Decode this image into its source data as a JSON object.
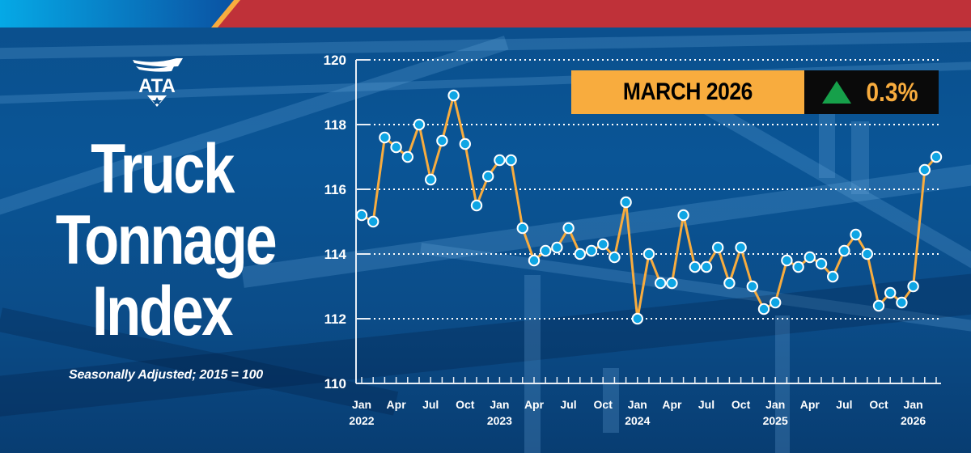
{
  "header": {
    "left_gradient": [
      "#05a9e6",
      "#0b4fa0"
    ],
    "stripe_color": "#f8ac3e",
    "right_color": "#bf3139"
  },
  "logo": {
    "text": "ATA"
  },
  "title": {
    "line1": "Truck",
    "line2": "Tonnage",
    "line3": "Index"
  },
  "subtitle": "Seasonally Adjusted; 2015 = 100",
  "badge": {
    "month_label": "MARCH 2026",
    "direction": "up",
    "change_label": "0.3%",
    "month_bg": "#f8ac3e",
    "change_bg": "#0a0a0a",
    "arrow_color": "#16a04a"
  },
  "colors": {
    "line": "#f8ac3e",
    "marker_fill": "#0ea5e4",
    "marker_stroke": "#ffffff",
    "axis": "#e8eef5",
    "grid": "#ffffff"
  },
  "chart_data": {
    "type": "line",
    "title": "Truck Tonnage Index",
    "subtitle": "Seasonally Adjusted; 2015 = 100",
    "xlabel": "",
    "ylabel": "",
    "ylim": [
      110,
      120
    ],
    "yticks": [
      110,
      112,
      114,
      116,
      118,
      120
    ],
    "grid": "horizontal dotted",
    "x_tick_labels": [
      {
        "index": 0,
        "month": "Jan",
        "year": "2022"
      },
      {
        "index": 3,
        "month": "Apr",
        "year": ""
      },
      {
        "index": 6,
        "month": "Jul",
        "year": ""
      },
      {
        "index": 9,
        "month": "Oct",
        "year": ""
      },
      {
        "index": 12,
        "month": "Jan",
        "year": "2023"
      },
      {
        "index": 15,
        "month": "Apr",
        "year": ""
      },
      {
        "index": 18,
        "month": "Jul",
        "year": ""
      },
      {
        "index": 21,
        "month": "Oct",
        "year": ""
      },
      {
        "index": 24,
        "month": "Jan",
        "year": "2024"
      },
      {
        "index": 27,
        "month": "Apr",
        "year": ""
      },
      {
        "index": 30,
        "month": "Jul",
        "year": ""
      },
      {
        "index": 33,
        "month": "Oct",
        "year": ""
      },
      {
        "index": 36,
        "month": "Jan",
        "year": "2025"
      },
      {
        "index": 39,
        "month": "Apr",
        "year": ""
      },
      {
        "index": 42,
        "month": "Jul",
        "year": ""
      },
      {
        "index": 45,
        "month": "Oct",
        "year": ""
      },
      {
        "index": 48,
        "month": "Jan",
        "year": "2026"
      }
    ],
    "x": [
      "2022-01",
      "2022-02",
      "2022-03",
      "2022-04",
      "2022-05",
      "2022-06",
      "2022-07",
      "2022-08",
      "2022-09",
      "2022-10",
      "2022-11",
      "2022-12",
      "2023-01",
      "2023-02",
      "2023-03",
      "2023-04",
      "2023-05",
      "2023-06",
      "2023-07",
      "2023-08",
      "2023-09",
      "2023-10",
      "2023-11",
      "2023-12",
      "2024-01",
      "2024-02",
      "2024-03",
      "2024-04",
      "2024-05",
      "2024-06",
      "2024-07",
      "2024-08",
      "2024-09",
      "2024-10",
      "2024-11",
      "2024-12",
      "2025-01",
      "2025-02",
      "2025-03",
      "2025-04",
      "2025-05",
      "2025-06",
      "2025-07",
      "2025-08",
      "2025-09",
      "2025-10",
      "2025-11",
      "2025-12",
      "2026-01",
      "2026-02",
      "2026-03"
    ],
    "series": [
      {
        "name": "Truck Tonnage Index (SA, 2015=100)",
        "values": [
          115.2,
          115.0,
          117.6,
          117.3,
          117.0,
          118.0,
          116.3,
          117.5,
          118.9,
          117.4,
          115.5,
          116.4,
          116.9,
          116.9,
          114.8,
          113.8,
          114.1,
          114.2,
          114.8,
          114.0,
          114.1,
          114.3,
          113.9,
          115.6,
          112.0,
          114.0,
          113.1,
          113.1,
          115.2,
          113.6,
          113.6,
          114.2,
          113.1,
          114.2,
          113.0,
          112.3,
          112.5,
          113.8,
          113.6,
          113.9,
          113.7,
          113.3,
          114.1,
          114.6,
          114.0,
          112.4,
          112.8,
          112.5,
          113.0,
          116.6,
          117.0
        ]
      }
    ],
    "annotation": {
      "label": "MARCH 2026",
      "change": "+0.3%"
    }
  }
}
